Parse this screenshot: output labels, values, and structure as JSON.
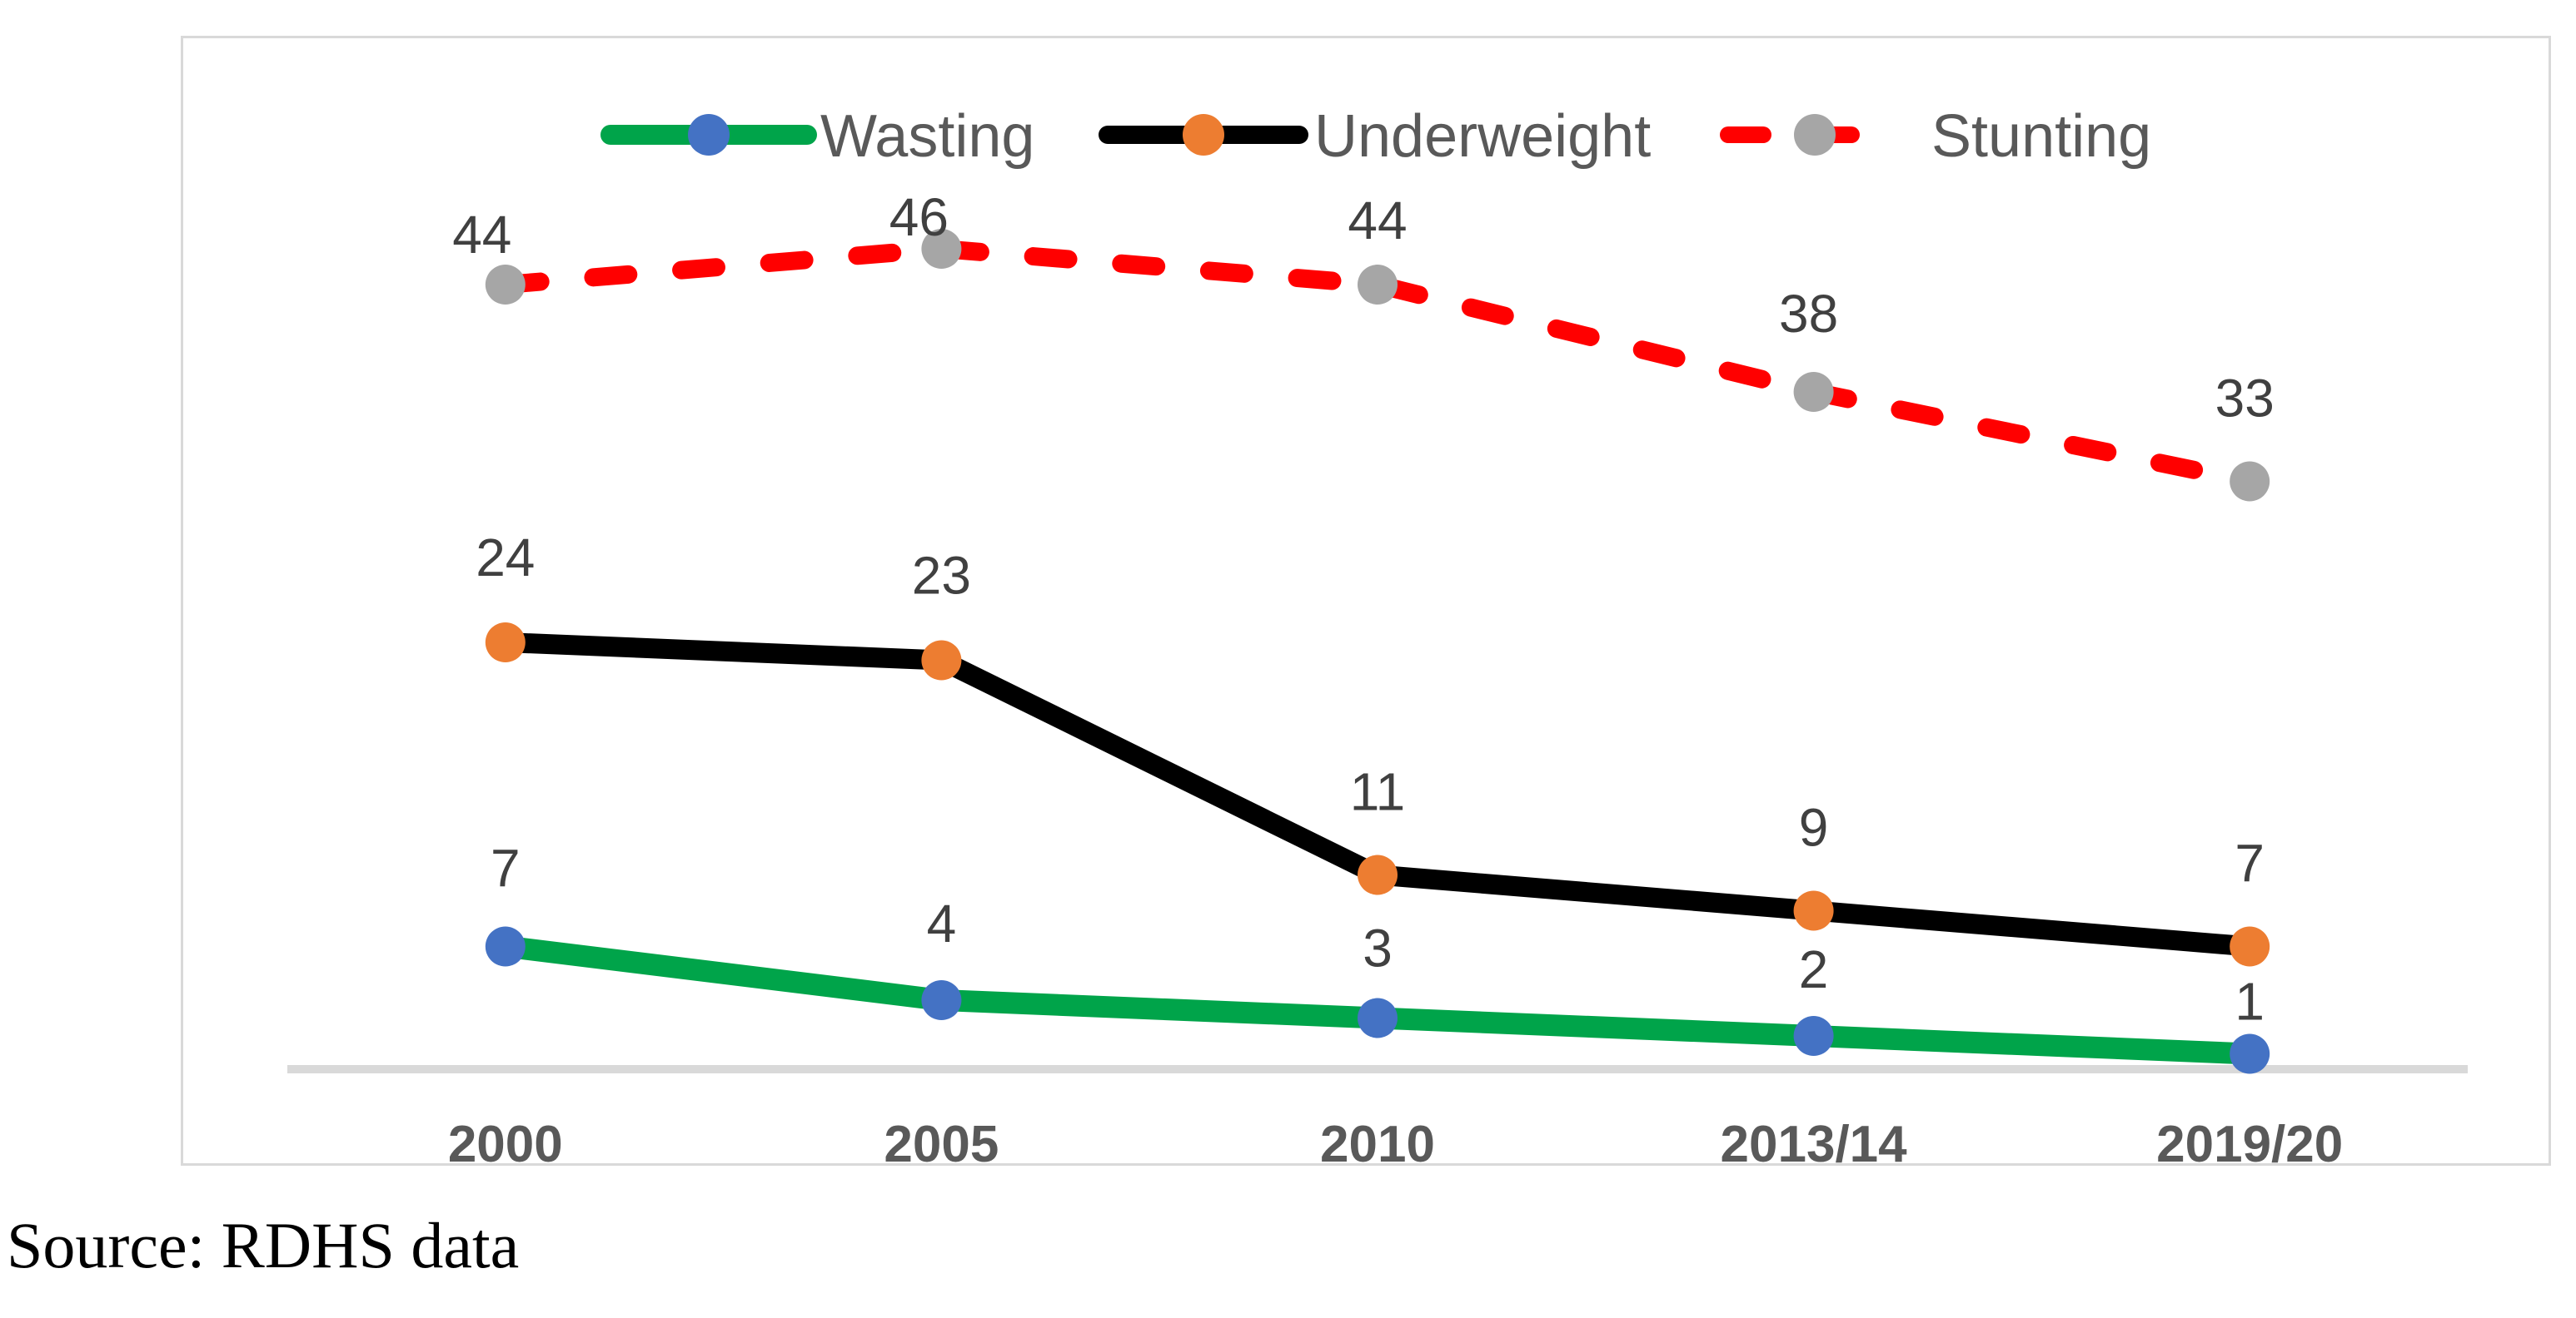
{
  "figure": {
    "source_note": "Source: RDHS data"
  },
  "chart_data": {
    "type": "line",
    "title": "",
    "xlabel": "",
    "ylabel": "",
    "categories": [
      "2000",
      "2005",
      "2010",
      "2013/14",
      "2019/20"
    ],
    "series": [
      {
        "name": "Wasting",
        "values": [
          7,
          4,
          3,
          2,
          1
        ],
        "line_color": "#00A44A",
        "marker_color": "#4472C4",
        "dashed": false
      },
      {
        "name": "Underweight",
        "values": [
          24,
          23,
          11,
          9,
          7
        ],
        "line_color": "#000000",
        "marker_color": "#ED7D31",
        "dashed": false
      },
      {
        "name": "Stunting",
        "values": [
          44,
          46,
          44,
          38,
          33
        ],
        "line_color": "#FF0000",
        "marker_color": "#A6A6A6",
        "dashed": true
      }
    ],
    "ylim": [
      0,
      50
    ],
    "grid": false,
    "legend_position": "top",
    "data_labels": true
  },
  "colors": {
    "axis_line": "#D9D9D9",
    "chart_border": "#D9D9D9",
    "tick_text": "#595959",
    "legend_text": "#595959",
    "data_label_text": "#404040",
    "source_text": "#000000"
  }
}
